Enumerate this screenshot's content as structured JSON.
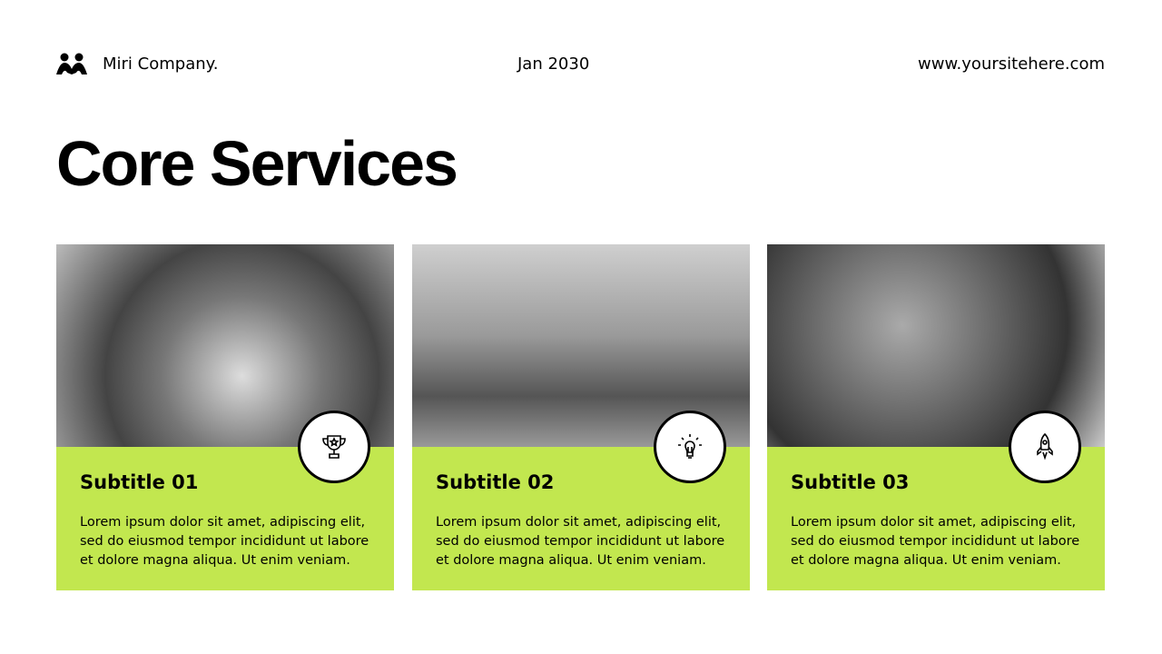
{
  "header": {
    "brand": "Miri Company.",
    "date": "Jan 2030",
    "website": "www.yoursitehere.com",
    "logo_icon": "people-logo-icon"
  },
  "title": "Core Services",
  "colors": {
    "accent": "#c2e74f",
    "text": "#000000"
  },
  "cards": [
    {
      "subtitle": "Subtitle 01",
      "body": "Lorem ipsum dolor sit amet, adipiscing elit, sed do eiusmod tempor incididunt ut labore et dolore magna aliqua. Ut enim veniam.",
      "icon": "trophy-icon",
      "photo": "team hands stacked together (grayscale)"
    },
    {
      "subtitle": "Subtitle 02",
      "body": "Lorem ipsum dolor sit amet, adipiscing elit, sed do eiusmod tempor incididunt ut labore et dolore magna aliqua. Ut enim veniam.",
      "icon": "lightbulb-icon",
      "photo": "team around laptop (grayscale)"
    },
    {
      "subtitle": "Subtitle 03",
      "body": "Lorem ipsum dolor sit amet, adipiscing elit, sed do eiusmod tempor incididunt ut labore et dolore magna aliqua. Ut enim veniam.",
      "icon": "rocket-icon",
      "photo": "team pointing at laptop (grayscale)"
    }
  ]
}
